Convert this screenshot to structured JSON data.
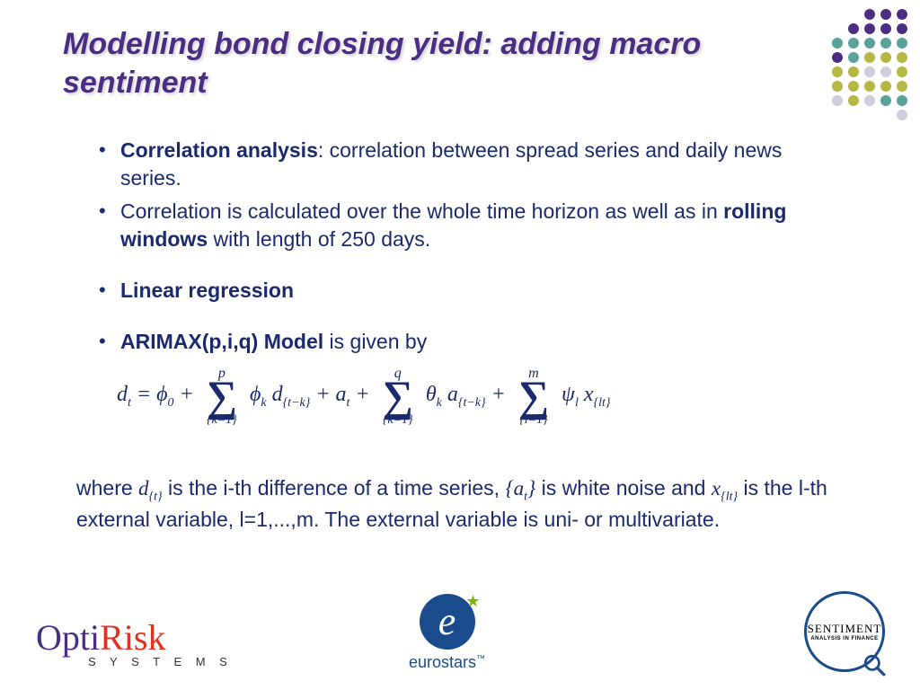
{
  "title": "Modelling bond closing yield: adding macro sentiment",
  "dots": {
    "colors": {
      "purple": "#4b2e83",
      "teal": "#5ba39a",
      "olive": "#b5b844",
      "grey": "#d0cde0"
    },
    "rows": [
      [
        "purple",
        "purple",
        "purple"
      ],
      [
        "purple",
        "purple",
        "purple",
        "purple"
      ],
      [
        "teal",
        "teal",
        "teal",
        "teal",
        "teal"
      ],
      [
        "purple",
        "teal",
        "olive",
        "olive",
        "olive"
      ],
      [
        "olive",
        "olive",
        "grey",
        "grey",
        "olive"
      ],
      [
        "olive",
        "olive",
        "olive",
        "olive",
        "olive"
      ],
      [
        "grey",
        "olive",
        "grey",
        "teal",
        "teal"
      ],
      [
        "grey"
      ]
    ]
  },
  "bullets": {
    "b1_bold": "Correlation analysis",
    "b1_rest": ": correlation between spread series and daily news series.",
    "b2_pre": "Correlation is calculated over the whole time horizon as well as in ",
    "b2_bold": "rolling windows",
    "b2_post": " with length of 250 days.",
    "b3": "Linear regression",
    "b4_bold": "ARIMAX(p,i,q) Model",
    "b4_rest": " is given by"
  },
  "formula": {
    "lhs": "d",
    "lhs_sub": "t",
    "eq": " =  ",
    "phi0": "ϕ",
    "phi0_sub": "0",
    "plus": " + ",
    "sum1_top": "p",
    "sum1_bot": "{k=1}",
    "term1_a": "ϕ",
    "term1_a_sub": "k",
    "term1_b": " d",
    "term1_b_sub": "{t−k}",
    "term2": " a",
    "term2_sub": "t",
    "sum2_top": "q",
    "sum2_bot": "{k=1}",
    "term3_a": "θ",
    "term3_a_sub": "k",
    "term3_b": " a",
    "term3_b_sub": "{t−k}",
    "sum3_top": "m",
    "sum3_bot": "{l=1}",
    "term4_a": "ψ",
    "term4_a_sub": "l",
    "term4_b": " x",
    "term4_b_sub": "{lt}"
  },
  "where": {
    "w1": "where ",
    "d": "d",
    "d_sub": "{t}",
    "w2": "is the i-th difference of a time series, ",
    "a": "{a",
    "a_sub": "t",
    "a_close": "}",
    "w3": " is white noise and ",
    "x": "x",
    "x_sub": "{lt}",
    "w4": " is the l-th external variable, l=1,...,m. The external variable is uni- or multivariate."
  },
  "logos": {
    "optirisk_a": "Opti",
    "optirisk_b": "Risk",
    "optirisk_c": "S Y S T E M S",
    "eurostars": "eurostars",
    "sentiment_a": "SENTIMENT",
    "sentiment_b": "ANALYSIS IN FINANCE"
  }
}
